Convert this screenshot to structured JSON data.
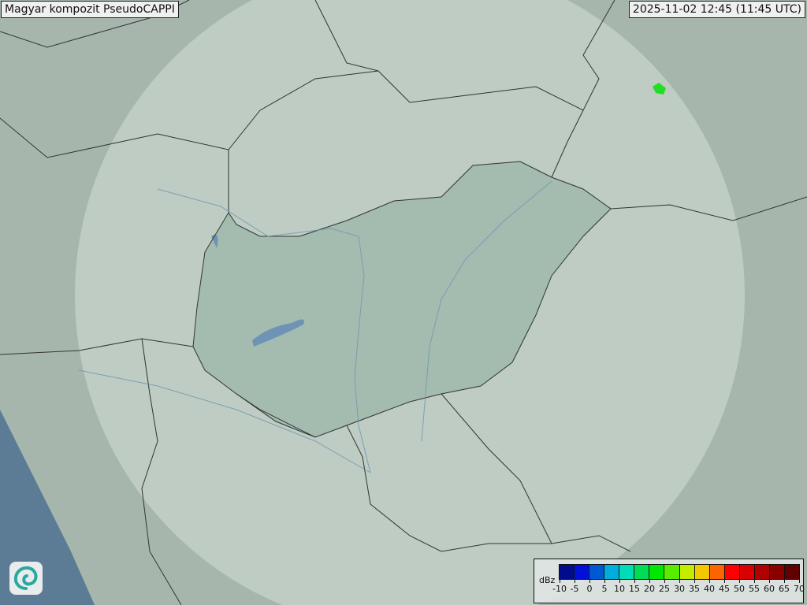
{
  "title": "Magyar kompozit  PseudoCAPPI",
  "timestamp": "2025-11-02 12:45 (11:45 UTC)",
  "legend": {
    "unit": "dBz",
    "labels": [
      "-10",
      "-5",
      "0",
      "5",
      "10",
      "15",
      "20",
      "25",
      "30",
      "35",
      "40",
      "45",
      "50",
      "55",
      "60",
      "65",
      "70"
    ],
    "colors": [
      "#000c8c",
      "#0010d8",
      "#0059d4",
      "#00aedc",
      "#00dcb8",
      "#00dc58",
      "#00e800",
      "#58ec00",
      "#c4ec00",
      "#f4c800",
      "#fc6400",
      "#fc0000",
      "#d80000",
      "#b00000",
      "#880000",
      "#600000"
    ]
  },
  "map": {
    "radar_echoes": [
      {
        "color": "#22dd22",
        "dbz_class": "20"
      }
    ],
    "colors": {
      "land": "#a7b6ac",
      "coverage": "#c6d3cb",
      "hungary": "#9fb9ab",
      "sea": "#5c7b95",
      "borders": "#333333",
      "rivers": "#6f93b4"
    }
  },
  "logo": {
    "icon": "swirl-logo-icon"
  }
}
